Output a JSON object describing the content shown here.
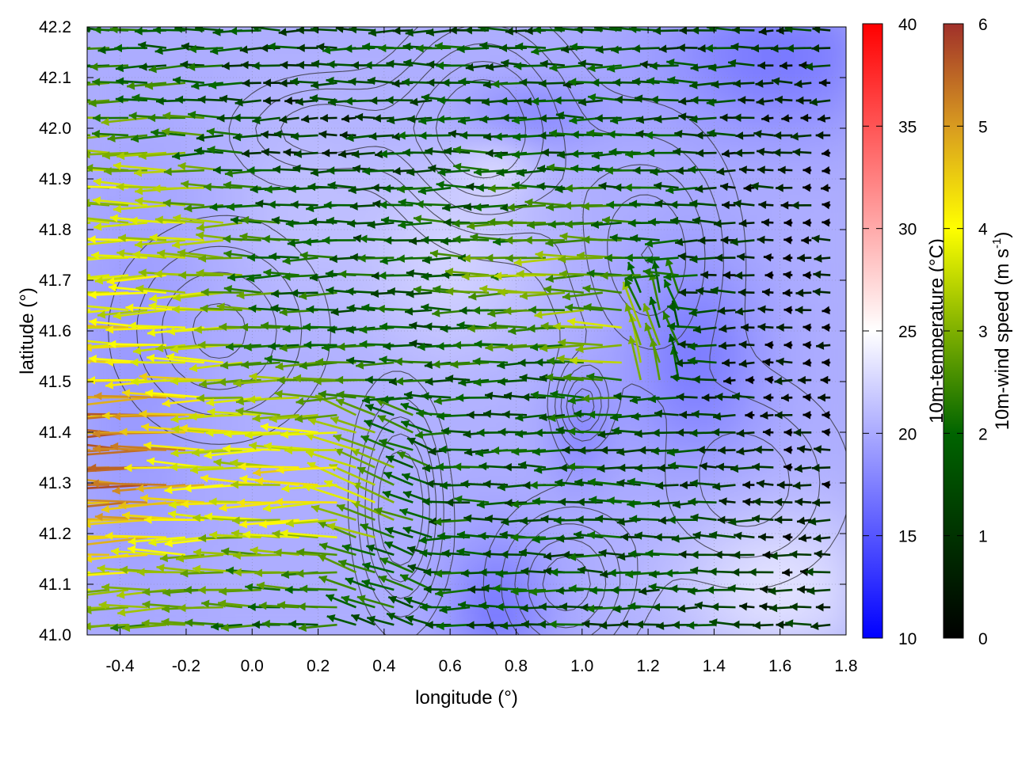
{
  "chart_data": {
    "type": "heatmap",
    "title": "",
    "xlabel": "longitude (°)",
    "ylabel": "latitude (°)",
    "xlim": [
      -0.5,
      1.8
    ],
    "ylim": [
      41.0,
      42.2
    ],
    "xticks": [
      "-0.4",
      "-0.2",
      "0.0",
      "0.2",
      "0.4",
      "0.6",
      "0.8",
      "1.0",
      "1.2",
      "1.4",
      "1.6",
      "1.8"
    ],
    "yticks": [
      "41.0",
      "41.1",
      "41.2",
      "41.3",
      "41.4",
      "41.5",
      "41.6",
      "41.7",
      "41.8",
      "41.9",
      "42.0",
      "42.1",
      "42.2"
    ],
    "grid": true,
    "layers": {
      "background": "10m-temperature field (color shading)",
      "contours": "terrain elevation contours (gray lines)",
      "vectors": "10m-wind vectors colored by speed"
    },
    "colorbars": [
      {
        "name": "temperature",
        "label": "10m-temperature (°C)",
        "range": [
          10,
          40
        ],
        "ticks": [
          "10",
          "15",
          "20",
          "25",
          "30",
          "35",
          "40"
        ],
        "colors": [
          "#0000ff",
          "#ffffff",
          "#ff0000"
        ]
      },
      {
        "name": "wind_speed",
        "label": "10m-wind speed (m s",
        "label_sup": "-1",
        "label_end": ")",
        "range": [
          0,
          6
        ],
        "ticks": [
          "0",
          "1",
          "2",
          "3",
          "4",
          "5",
          "6"
        ],
        "colors": [
          "#000000",
          "#006400",
          "#ffff00",
          "#d79b2a",
          "#a0302a"
        ]
      }
    ],
    "temperature_field_description": {
      "range_c": [
        15,
        23
      ],
      "coldest_areas": [
        "north-east (lon 1.4–1.8, lat 41.95–42.2)",
        "east-central (lon 1.2–1.5, lat 41.4–41.7)",
        "south-central around lon 0.6–0.8, lat 41.0–41.2"
      ],
      "warmest_areas": [
        "south-east (lon 1.3–1.8, lat 41.0–41.25)",
        "central (lon 0.4–0.9, lat 41.5–41.9)"
      ]
    },
    "wind_field_description": {
      "dominant_direction": "from east to west (vectors pointing west)",
      "strongest_area": "west and south-west (lon -0.5–0.3, lat 41.1–41.7) up to ~6 m/s",
      "weakest_area": "east (lon 1.4–1.8) near 0–1 m/s"
    }
  }
}
